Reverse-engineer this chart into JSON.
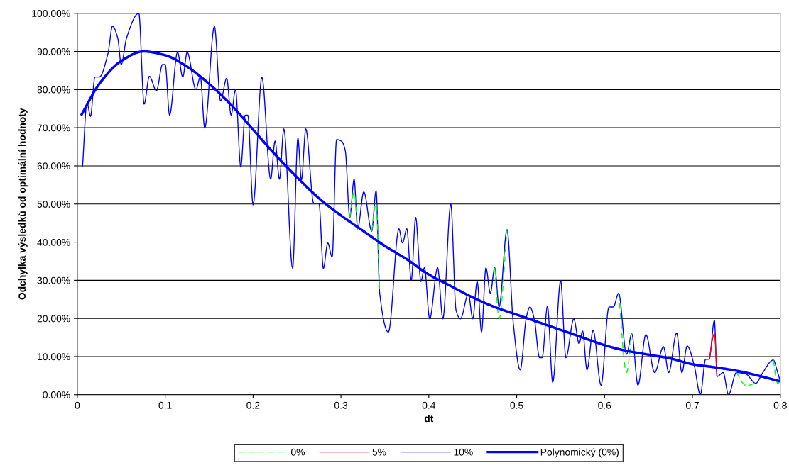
{
  "chart_data": {
    "type": "line",
    "xlabel": "dt",
    "ylabel": "Odchylka výsledků od optimální hodnoty",
    "x": [
      0.006,
      0.011,
      0.015,
      0.02,
      0.025,
      0.035,
      0.04,
      0.046,
      0.05,
      0.056,
      0.07,
      0.076,
      0.082,
      0.09,
      0.097,
      0.1,
      0.105,
      0.114,
      0.12,
      0.125,
      0.135,
      0.14,
      0.145,
      0.156,
      0.163,
      0.17,
      0.175,
      0.18,
      0.186,
      0.191,
      0.194,
      0.2,
      0.21,
      0.22,
      0.225,
      0.23,
      0.235,
      0.245,
      0.251,
      0.255,
      0.26,
      0.269,
      0.275,
      0.28,
      0.285,
      0.29,
      0.295,
      0.301,
      0.305,
      0.31,
      0.315,
      0.319,
      0.326,
      0.335,
      0.34,
      0.344,
      0.354,
      0.366,
      0.37,
      0.375,
      0.38,
      0.385,
      0.391,
      0.395,
      0.401,
      0.41,
      0.416,
      0.425,
      0.431,
      0.436,
      0.445,
      0.45,
      0.455,
      0.46,
      0.465,
      0.47,
      0.475,
      0.48,
      0.489,
      0.496,
      0.504,
      0.511,
      0.515,
      0.52,
      0.526,
      0.529,
      0.535,
      0.541,
      0.55,
      0.556,
      0.565,
      0.571,
      0.575,
      0.58,
      0.587,
      0.596,
      0.605,
      0.61,
      0.616,
      0.625,
      0.631,
      0.638,
      0.647,
      0.657,
      0.667,
      0.673,
      0.682,
      0.688,
      0.694,
      0.702,
      0.709,
      0.715,
      0.719,
      0.725,
      0.728,
      0.735,
      0.741,
      0.75,
      0.761,
      0.772,
      0.78,
      0.792,
      0.797,
      0.8
    ],
    "series": [
      {
        "name": "0%",
        "color": "#00ff00",
        "line_style": "dashed",
        "values": [
          null,
          null,
          null,
          null,
          null,
          null,
          null,
          null,
          null,
          null,
          null,
          null,
          null,
          null,
          null,
          null,
          null,
          null,
          null,
          null,
          null,
          null,
          null,
          null,
          null,
          null,
          null,
          null,
          null,
          null,
          null,
          null,
          null,
          null,
          null,
          null,
          null,
          null,
          null,
          null,
          null,
          null,
          null,
          null,
          null,
          null,
          null,
          null,
          null,
          46.5,
          53,
          43.5,
          null,
          42.9,
          50.2,
          26.8,
          null,
          null,
          null,
          null,
          null,
          null,
          null,
          null,
          null,
          null,
          null,
          null,
          null,
          null,
          null,
          null,
          null,
          null,
          null,
          null,
          33.3,
          19.9,
          43.3,
          null,
          null,
          null,
          null,
          null,
          null,
          null,
          null,
          null,
          null,
          null,
          null,
          null,
          null,
          null,
          null,
          null,
          null,
          null,
          26.6,
          5.8,
          16,
          null,
          null,
          null,
          null,
          null,
          null,
          null,
          null,
          null,
          null,
          null,
          null,
          null,
          null,
          null,
          null,
          5.8,
          2.4,
          3,
          null,
          9.1,
          3,
          3.5
        ]
      },
      {
        "name": "5%",
        "color": "#ff0000",
        "line_style": "solid",
        "values": [
          null,
          null,
          null,
          null,
          null,
          null,
          null,
          null,
          null,
          null,
          null,
          null,
          null,
          null,
          null,
          null,
          null,
          null,
          null,
          null,
          null,
          null,
          null,
          null,
          null,
          null,
          null,
          null,
          null,
          null,
          null,
          null,
          null,
          null,
          null,
          null,
          null,
          null,
          null,
          null,
          null,
          null,
          null,
          null,
          null,
          null,
          null,
          null,
          null,
          null,
          null,
          null,
          null,
          null,
          null,
          null,
          null,
          null,
          null,
          null,
          null,
          null,
          null,
          null,
          null,
          null,
          null,
          null,
          null,
          null,
          null,
          null,
          null,
          null,
          null,
          null,
          null,
          null,
          null,
          null,
          null,
          null,
          null,
          null,
          null,
          null,
          null,
          null,
          null,
          null,
          null,
          null,
          null,
          null,
          null,
          null,
          null,
          null,
          null,
          null,
          null,
          null,
          null,
          null,
          null,
          null,
          null,
          null,
          null,
          null,
          null,
          null,
          9.3,
          16,
          4.8,
          null,
          null,
          null,
          null,
          null,
          null,
          null,
          null,
          null
        ]
      },
      {
        "name": "10%",
        "color": "#0000ff",
        "line_style": "solid",
        "values": [
          60,
          76.6,
          73,
          83.3,
          83.3,
          89.6,
          96.6,
          93.5,
          86.6,
          93.5,
          100,
          76.2,
          83.5,
          79.7,
          86.6,
          86.6,
          73.3,
          89.8,
          83.3,
          89.8,
          80,
          83.4,
          69.9,
          96.6,
          77,
          83,
          73.3,
          80,
          59.7,
          73.3,
          73.3,
          49.8,
          83.3,
          56.5,
          66.5,
          56.5,
          69.7,
          33.1,
          67.3,
          56.3,
          69.7,
          50.2,
          50.2,
          33.1,
          39.8,
          36.1,
          66.9,
          66.4,
          63.9,
          46.5,
          56.5,
          43.5,
          53.2,
          42.9,
          53.5,
          26.8,
          16.4,
          43.5,
          39.8,
          43.5,
          29.9,
          46.5,
          29.7,
          33.3,
          19.9,
          33.3,
          19.9,
          50,
          22.1,
          19.9,
          26.4,
          19.9,
          29.7,
          16.5,
          33.3,
          26.6,
          33.3,
          23,
          43.3,
          19,
          6.5,
          20.3,
          23,
          19.9,
          9.7,
          9.7,
          23.2,
          3.2,
          29.9,
          9.7,
          19.9,
          13.4,
          16.7,
          6.5,
          16.9,
          2.5,
          23,
          23,
          26.6,
          10.6,
          16,
          2.5,
          15.8,
          5.8,
          12.6,
          5.8,
          16.2,
          5.8,
          12.8,
          7.7,
          0,
          9.3,
          9.3,
          19.5,
          4.8,
          5.8,
          0,
          5.8,
          5.4,
          3,
          5.8,
          9.1,
          5.8,
          3.5
        ]
      },
      {
        "name": "Polynomický (0%)",
        "color": "#0000ff",
        "line_style": "solid",
        "x": [
          0.005,
          0.025,
          0.05,
          0.075,
          0.1,
          0.125,
          0.15,
          0.175,
          0.2,
          0.225,
          0.25,
          0.275,
          0.3,
          0.325,
          0.35,
          0.375,
          0.4,
          0.425,
          0.45,
          0.475,
          0.5,
          0.525,
          0.55,
          0.575,
          0.6,
          0.625,
          0.65,
          0.675,
          0.7,
          0.725,
          0.75,
          0.775,
          0.8
        ],
        "values": [
          73.5,
          81.5,
          87.5,
          90,
          89,
          86,
          81.5,
          76,
          69.5,
          63,
          57,
          51.5,
          47,
          43,
          39,
          35.5,
          31.5,
          28.5,
          25.5,
          23,
          21,
          19,
          17,
          15,
          13,
          11.5,
          10.5,
          9.5,
          8,
          7.2,
          6.3,
          5,
          3.5
        ]
      }
    ],
    "xlim": [
      0,
      0.8
    ],
    "xticks": [
      0,
      0.1,
      0.2,
      0.3,
      0.4,
      0.5,
      0.6,
      0.7,
      0.8
    ],
    "ylim": [
      0,
      100
    ],
    "yticks": [
      {
        "value": 0,
        "label": "0.00%"
      },
      {
        "value": 10,
        "label": "10.00%"
      },
      {
        "value": 20,
        "label": "20.00%"
      },
      {
        "value": 30,
        "label": "30.00%"
      },
      {
        "value": 40,
        "label": "40.00%"
      },
      {
        "value": 50,
        "label": "50.00%"
      },
      {
        "value": 60,
        "label": "60.00%"
      },
      {
        "value": 70,
        "label": "70.00%"
      },
      {
        "value": 80,
        "label": "80.00%"
      },
      {
        "value": 90,
        "label": "90.00%"
      },
      {
        "value": 100,
        "label": "100.00%"
      }
    ],
    "grid": "y",
    "legend": "bottom",
    "marker": "none"
  }
}
